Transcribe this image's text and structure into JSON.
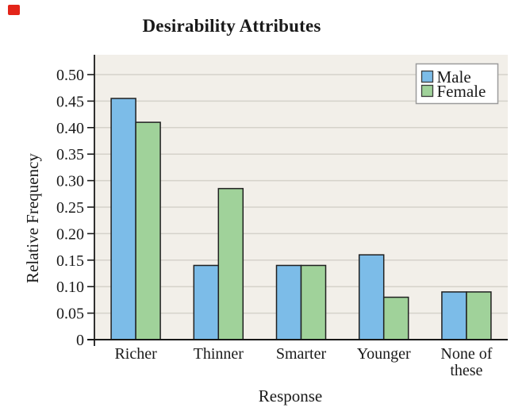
{
  "marker": {
    "color": "#e32419"
  },
  "chart_data": {
    "type": "bar",
    "title": "Desirability Attributes",
    "xlabel": "Response",
    "ylabel": "Relative Frequency",
    "categories": [
      "Richer",
      "Thinner",
      "Smarter",
      "Younger",
      "None of these"
    ],
    "category_lines": [
      [
        "Richer"
      ],
      [
        "Thinner"
      ],
      [
        "Smarter"
      ],
      [
        "Younger"
      ],
      [
        "None of",
        "these"
      ]
    ],
    "series": [
      {
        "name": "Male",
        "color": "#7cbce8",
        "values": [
          0.455,
          0.14,
          0.14,
          0.16,
          0.09
        ]
      },
      {
        "name": "Female",
        "color": "#a0d29a",
        "values": [
          0.41,
          0.285,
          0.14,
          0.08,
          0.09
        ]
      }
    ],
    "ylim": [
      0,
      0.535
    ],
    "ytick_step": 0.05,
    "ytick_values": [
      0,
      0.05,
      0.1,
      0.15,
      0.2,
      0.25,
      0.3,
      0.35,
      0.4,
      0.45,
      0.5
    ],
    "ytick_labels": [
      "0",
      "0.05",
      "0.10",
      "0.15",
      "0.20",
      "0.25",
      "0.30",
      "0.35",
      "0.40",
      "0.45",
      "0.50"
    ],
    "grid": true,
    "legend": {
      "position": "top-right",
      "labels": [
        "Male",
        "Female"
      ]
    },
    "colors": {
      "plot_bg": "#f2efe9",
      "grid": "#d5d2ca",
      "bar_border": "#202020",
      "axis": "#1a1a1a",
      "text": "#1a1a1a",
      "legend_border": "#9b9b9b",
      "legend_bg": "#ffffff"
    }
  }
}
